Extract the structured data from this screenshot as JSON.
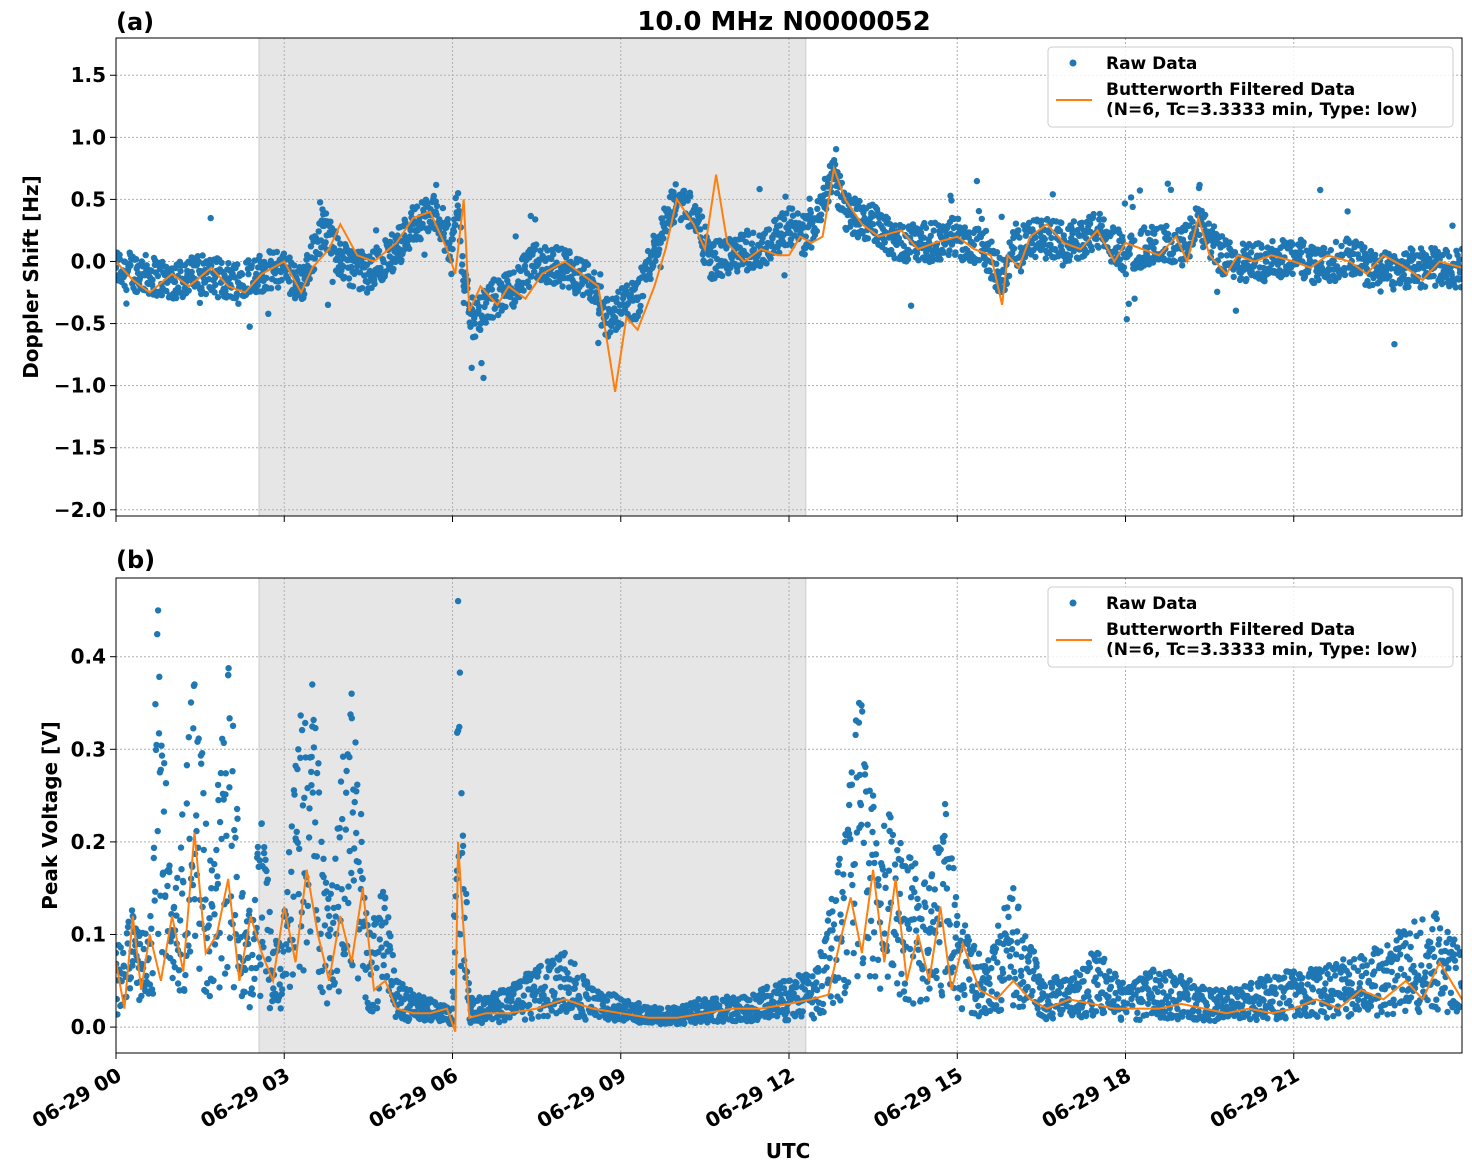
{
  "figure_title": "10.0 MHz N0000052",
  "x_axis_label": "UTC",
  "x_tick_labels": [
    "06-29 00",
    "06-29 03",
    "06-29 06",
    "06-29 09",
    "06-29 12",
    "06-29 15",
    "06-29 18",
    "06-29 21"
  ],
  "colors": {
    "raw": "#1f77b4",
    "filtered": "#ff7f0e",
    "shade": "#e6e6e6",
    "grid": "#b0b0b0"
  },
  "chart_data": [
    {
      "type": "scatter",
      "panel_label": "(a)",
      "title": "10.0 MHz N0000052",
      "xlabel": "",
      "ylabel": "Doppler Shift [Hz]",
      "x_unit": "hours UTC on 06-29",
      "xlim": [
        0,
        24
      ],
      "ylim": [
        -2.05,
        1.8
      ],
      "y_ticks": [
        -2.0,
        -1.5,
        -1.0,
        -0.5,
        0.0,
        0.5,
        1.0,
        1.5
      ],
      "y_tick_labels": [
        "−2.0",
        "−1.5",
        "−1.0",
        "−0.5",
        "0.0",
        "0.5",
        "1.0",
        "1.5"
      ],
      "grid": true,
      "legend_position": "top-right",
      "shaded_interval": [
        2.55,
        12.3
      ],
      "series": [
        {
          "name": "Raw Data",
          "style": "scatter",
          "x": [
            0,
            0.5,
            1,
            1.5,
            2,
            2.5,
            3,
            3.3,
            3.7,
            4,
            4.5,
            5,
            5.3,
            5.7,
            6,
            6.1,
            6.2,
            6.4,
            6.7,
            7,
            7.5,
            8,
            8.5,
            8.8,
            9,
            9.3,
            9.6,
            10,
            10.3,
            10.6,
            11,
            11.5,
            12,
            12.3,
            12.8,
            13,
            13.5,
            14,
            14.5,
            15,
            15.5,
            15.8,
            16,
            16.5,
            17,
            17.5,
            18,
            18.5,
            19,
            19.3,
            19.7,
            20,
            20.5,
            21,
            21.5,
            22,
            22.5,
            23,
            23.5,
            24
          ],
          "y": [
            -0.05,
            -0.1,
            -0.15,
            -0.1,
            -0.15,
            -0.1,
            -0.05,
            -0.2,
            0.3,
            0.0,
            -0.1,
            0.1,
            0.3,
            0.4,
            0.1,
            0.55,
            -0.2,
            -0.5,
            -0.3,
            -0.25,
            0.0,
            -0.05,
            -0.2,
            -0.5,
            -0.35,
            -0.3,
            0.1,
            0.5,
            0.4,
            0.0,
            0.05,
            0.1,
            0.3,
            0.2,
            0.7,
            0.4,
            0.3,
            0.15,
            0.15,
            0.2,
            0.1,
            -0.15,
            0.1,
            0.2,
            0.15,
            0.25,
            0.05,
            0.15,
            0.1,
            0.3,
            0.05,
            0.0,
            0.0,
            0.05,
            -0.05,
            0.05,
            -0.1,
            -0.05,
            -0.05,
            -0.05
          ]
        },
        {
          "name": "Butterworth Filtered Data",
          "name_detail": "(N=6, Tc=3.3333 min, Type: low)",
          "style": "line",
          "x": [
            0,
            0.3,
            0.6,
            1,
            1.3,
            1.7,
            2,
            2.3,
            2.6,
            3,
            3.3,
            3.5,
            3.8,
            4,
            4.3,
            4.6,
            5,
            5.3,
            5.6,
            5.9,
            6.05,
            6.2,
            6.3,
            6.5,
            6.8,
            7,
            7.3,
            7.6,
            8,
            8.3,
            8.6,
            8.9,
            9.1,
            9.3,
            9.6,
            9.8,
            10,
            10.3,
            10.5,
            10.7,
            10.9,
            11.2,
            11.5,
            11.8,
            12,
            12.2,
            12.4,
            12.6,
            12.8,
            13,
            13.3,
            13.6,
            14,
            14.3,
            14.6,
            15,
            15.3,
            15.6,
            15.8,
            15.9,
            16.1,
            16.3,
            16.6,
            16.9,
            17.2,
            17.5,
            17.8,
            18,
            18.3,
            18.6,
            18.9,
            19.1,
            19.3,
            19.5,
            19.8,
            20,
            20.3,
            20.6,
            21,
            21.3,
            21.6,
            22,
            22.3,
            22.6,
            23,
            23.3,
            23.6,
            24
          ],
          "y": [
            0.0,
            -0.15,
            -0.25,
            -0.1,
            -0.2,
            -0.05,
            -0.2,
            -0.25,
            -0.1,
            0.0,
            -0.25,
            -0.05,
            0.1,
            0.3,
            0.05,
            0.0,
            0.15,
            0.35,
            0.4,
            0.1,
            -0.1,
            0.5,
            -0.4,
            -0.2,
            -0.35,
            -0.2,
            -0.3,
            -0.1,
            0.0,
            -0.1,
            -0.2,
            -1.05,
            -0.45,
            -0.55,
            -0.2,
            0.1,
            0.5,
            0.3,
            0.1,
            0.7,
            0.15,
            0.0,
            0.1,
            0.05,
            0.05,
            0.2,
            0.15,
            0.2,
            0.75,
            0.5,
            0.3,
            0.2,
            0.25,
            0.1,
            0.15,
            0.2,
            0.1,
            0.05,
            -0.35,
            0.05,
            -0.05,
            0.2,
            0.3,
            0.15,
            0.1,
            0.25,
            0.0,
            0.15,
            0.1,
            0.05,
            0.2,
            0.0,
            0.35,
            0.05,
            -0.1,
            0.05,
            0.0,
            0.05,
            0.0,
            -0.05,
            0.05,
            0.0,
            -0.1,
            0.05,
            -0.05,
            -0.15,
            0.0,
            -0.05
          ]
        }
      ]
    },
    {
      "type": "scatter",
      "panel_label": "(b)",
      "title": "",
      "xlabel": "UTC",
      "ylabel": "Peak Voltage [V]",
      "x_unit": "hours UTC on 06-29",
      "xlim": [
        0,
        24
      ],
      "ylim": [
        -0.028,
        0.485
      ],
      "y_ticks": [
        0.0,
        0.1,
        0.2,
        0.3,
        0.4
      ],
      "y_tick_labels": [
        "0.0",
        "0.1",
        "0.2",
        "0.3",
        "0.4"
      ],
      "grid": true,
      "legend_position": "top-right",
      "shaded_interval": [
        2.55,
        12.3
      ],
      "series": [
        {
          "name": "Raw Data",
          "style": "scatter",
          "x": [
            0,
            0.3,
            0.6,
            0.75,
            1,
            1.4,
            1.7,
            2.0,
            2.3,
            2.6,
            2.8,
            3.0,
            3.25,
            3.5,
            3.8,
            4.2,
            4.5,
            4.8,
            5.0,
            5.5,
            6.0,
            6.1,
            6.3,
            6.6,
            7.0,
            7.5,
            8.0,
            8.5,
            9.0,
            9.5,
            10.0,
            10.5,
            11.0,
            11.5,
            12.0,
            12.5,
            13.0,
            13.25,
            13.5,
            14.0,
            14.5,
            14.8,
            15.0,
            15.5,
            16.0,
            16.5,
            17.0,
            17.5,
            18.0,
            18.5,
            19.0,
            19.5,
            20.0,
            20.5,
            21.0,
            21.5,
            22.0,
            22.5,
            23.0,
            23.5,
            24.0
          ],
          "y": [
            0.08,
            0.12,
            0.09,
            0.45,
            0.1,
            0.37,
            0.15,
            0.38,
            0.1,
            0.22,
            0.08,
            0.12,
            0.3,
            0.37,
            0.12,
            0.36,
            0.1,
            0.14,
            0.05,
            0.03,
            0.02,
            0.46,
            0.03,
            0.03,
            0.04,
            0.06,
            0.08,
            0.04,
            0.03,
            0.02,
            0.02,
            0.03,
            0.03,
            0.04,
            0.05,
            0.06,
            0.2,
            0.35,
            0.25,
            0.18,
            0.15,
            0.23,
            0.12,
            0.06,
            0.15,
            0.05,
            0.05,
            0.08,
            0.04,
            0.06,
            0.05,
            0.04,
            0.04,
            0.05,
            0.06,
            0.06,
            0.07,
            0.08,
            0.1,
            0.12,
            0.08
          ]
        },
        {
          "name": "Butterworth Filtered Data",
          "name_detail": "(N=6, Tc=3.3333 min, Type: low)",
          "style": "line",
          "x": [
            0,
            0.15,
            0.3,
            0.45,
            0.6,
            0.8,
            1.0,
            1.2,
            1.4,
            1.6,
            1.8,
            2.0,
            2.2,
            2.4,
            2.6,
            2.8,
            3.0,
            3.2,
            3.4,
            3.6,
            3.8,
            4.0,
            4.2,
            4.4,
            4.6,
            4.8,
            5.0,
            5.3,
            5.6,
            5.9,
            6.05,
            6.1,
            6.15,
            6.3,
            6.6,
            7.0,
            7.5,
            8.0,
            8.5,
            9.0,
            9.5,
            10.0,
            10.5,
            11.0,
            11.5,
            12.0,
            12.4,
            12.7,
            12.9,
            13.1,
            13.3,
            13.5,
            13.7,
            13.9,
            14.1,
            14.3,
            14.5,
            14.7,
            14.9,
            15.1,
            15.4,
            15.7,
            16.0,
            16.3,
            16.6,
            17.0,
            17.4,
            17.8,
            18.2,
            18.6,
            19.0,
            19.4,
            19.8,
            20.2,
            20.6,
            21.0,
            21.4,
            21.8,
            22.2,
            22.6,
            23.0,
            23.3,
            23.6,
            24.0
          ],
          "y": [
            0.07,
            0.02,
            0.12,
            0.04,
            0.1,
            0.05,
            0.12,
            0.06,
            0.21,
            0.08,
            0.1,
            0.16,
            0.05,
            0.12,
            0.08,
            0.05,
            0.13,
            0.07,
            0.17,
            0.1,
            0.05,
            0.12,
            0.07,
            0.15,
            0.04,
            0.05,
            0.02,
            0.015,
            0.015,
            0.02,
            -0.005,
            0.2,
            0.15,
            0.01,
            0.015,
            0.015,
            0.02,
            0.03,
            0.02,
            0.015,
            0.01,
            0.01,
            0.015,
            0.02,
            0.02,
            0.025,
            0.03,
            0.035,
            0.09,
            0.14,
            0.08,
            0.17,
            0.07,
            0.16,
            0.05,
            0.1,
            0.05,
            0.13,
            0.04,
            0.09,
            0.04,
            0.03,
            0.05,
            0.03,
            0.02,
            0.03,
            0.025,
            0.02,
            0.02,
            0.02,
            0.025,
            0.02,
            0.015,
            0.02,
            0.015,
            0.02,
            0.03,
            0.02,
            0.04,
            0.03,
            0.05,
            0.03,
            0.07,
            0.03
          ]
        }
      ]
    }
  ]
}
